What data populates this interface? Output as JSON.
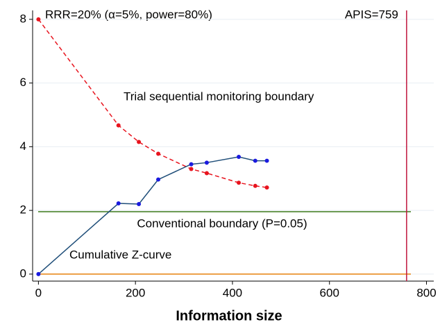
{
  "chart_data": {
    "type": "line",
    "title": "RRR=20% (α=5%, power=80%)",
    "x_label": "Information size",
    "x": [
      0,
      165,
      207,
      247,
      315,
      347,
      413,
      447,
      471
    ],
    "series": [
      {
        "name": "Trial sequential monitoring boundary",
        "color": "#e8141e",
        "style": "dashed",
        "values": [
          8,
          4.67,
          4.15,
          3.78,
          3.3,
          3.17,
          2.87,
          2.77,
          2.72
        ]
      },
      {
        "name": "Cumulative Z-curve",
        "color": "#1f4e79",
        "label_color": "#1a1adf",
        "marker_color": "#1a1adf",
        "style": "solid",
        "values": [
          0,
          2.22,
          2.2,
          2.97,
          3.45,
          3.5,
          3.68,
          3.56,
          3.56
        ]
      }
    ],
    "hlines": [
      {
        "label": "Conventional boundary (P=0.05)",
        "value": 1.96,
        "color": "#3d7a1a",
        "label_color": "#2ca02c"
      },
      {
        "value": 0,
        "color": "#e8820c"
      }
    ],
    "vlines": [
      {
        "label": "APIS=759",
        "value": 759,
        "color": "#c0143c"
      }
    ],
    "xlim": [
      -12,
      815
    ],
    "ylim": [
      -0.22,
      8.28
    ],
    "xticks": [
      0,
      200,
      400,
      600,
      800
    ],
    "yticks": [
      0,
      2,
      4,
      6,
      8
    ],
    "grid": true
  }
}
